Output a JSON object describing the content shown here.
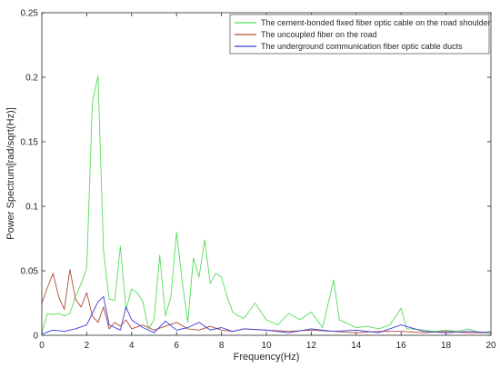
{
  "chart_data": {
    "type": "line",
    "xlabel": "Frequency(Hz)",
    "ylabel": "Power Spectrum[rad/sqrt(Hz)]",
    "xlim": [
      0,
      20
    ],
    "ylim": [
      0,
      0.25
    ],
    "xticks": [
      "0",
      "2",
      "4",
      "6",
      "8",
      "10",
      "12",
      "14",
      "16",
      "18",
      "20"
    ],
    "yticks": [
      "0",
      "0.05",
      "0.1",
      "0.15",
      "0.2",
      "0.25"
    ],
    "grid": false,
    "legend_position": "top-right",
    "series": [
      {
        "name": "The cement-bonded fixed fiber optic cable on the road shoulder",
        "color": "#55dd55",
        "x": [
          0,
          0.25,
          0.5,
          0.75,
          1.0,
          1.25,
          1.5,
          1.75,
          2.0,
          2.25,
          2.5,
          2.75,
          3.0,
          3.25,
          3.5,
          3.75,
          4.0,
          4.25,
          4.5,
          4.75,
          5.0,
          5.25,
          5.5,
          5.75,
          6.0,
          6.25,
          6.5,
          6.75,
          7.0,
          7.25,
          7.5,
          7.75,
          8.0,
          8.25,
          8.5,
          8.75,
          9.0,
          9.5,
          10.0,
          10.5,
          11.0,
          11.5,
          12.0,
          12.5,
          13.0,
          13.25,
          13.5,
          14.0,
          14.5,
          15.0,
          15.5,
          16.0,
          16.25,
          16.5,
          17.0,
          17.5,
          18.0,
          18.5,
          19.0,
          19.5,
          20.0
        ],
        "y": [
          0.002,
          0.017,
          0.016,
          0.017,
          0.015,
          0.017,
          0.03,
          0.04,
          0.052,
          0.18,
          0.201,
          0.065,
          0.028,
          0.027,
          0.069,
          0.02,
          0.036,
          0.033,
          0.026,
          0.005,
          0.012,
          0.062,
          0.015,
          0.03,
          0.08,
          0.042,
          0.01,
          0.06,
          0.045,
          0.074,
          0.04,
          0.048,
          0.045,
          0.03,
          0.018,
          0.015,
          0.013,
          0.025,
          0.012,
          0.008,
          0.017,
          0.012,
          0.018,
          0.006,
          0.043,
          0.012,
          0.01,
          0.006,
          0.007,
          0.005,
          0.008,
          0.021,
          0.005,
          0.005,
          0.004,
          0.003,
          0.004,
          0.003,
          0.005,
          0.002,
          0.003
        ]
      },
      {
        "name": "The uncoupled fiber on the road",
        "color": "#b24a33",
        "x": [
          0,
          0.25,
          0.5,
          0.75,
          1.0,
          1.25,
          1.5,
          1.75,
          2.0,
          2.25,
          2.5,
          2.75,
          3.0,
          3.25,
          3.5,
          3.75,
          4.0,
          4.5,
          5.0,
          5.5,
          6.0,
          6.5,
          7.0,
          7.5,
          8.0,
          8.5,
          9.0,
          10.0,
          11.0,
          12.0,
          13.0,
          14.0,
          15.0,
          16.0,
          17.0,
          18.0,
          19.0,
          20.0
        ],
        "y": [
          0.025,
          0.037,
          0.048,
          0.03,
          0.02,
          0.051,
          0.028,
          0.022,
          0.033,
          0.015,
          0.01,
          0.022,
          0.005,
          0.01,
          0.007,
          0.012,
          0.005,
          0.008,
          0.004,
          0.007,
          0.01,
          0.005,
          0.004,
          0.007,
          0.004,
          0.003,
          0.005,
          0.004,
          0.003,
          0.004,
          0.003,
          0.002,
          0.003,
          0.003,
          0.002,
          0.003,
          0.002,
          0.002
        ]
      },
      {
        "name": "The underground communication fiber optic cable ducts",
        "color": "#3b3bdd",
        "x": [
          0,
          0.5,
          1.0,
          1.5,
          2.0,
          2.5,
          2.75,
          3.0,
          3.5,
          3.75,
          4.0,
          4.5,
          5.0,
          5.5,
          6.0,
          6.5,
          7.0,
          7.5,
          8.0,
          8.5,
          9.0,
          10.0,
          11.0,
          12.0,
          13.0,
          14.0,
          15.0,
          16.0,
          17.0,
          18.0,
          19.0,
          20.0
        ],
        "y": [
          0.001,
          0.004,
          0.003,
          0.005,
          0.008,
          0.026,
          0.03,
          0.008,
          0.004,
          0.022,
          0.012,
          0.006,
          0.002,
          0.011,
          0.004,
          0.006,
          0.01,
          0.004,
          0.006,
          0.003,
          0.005,
          0.004,
          0.002,
          0.005,
          0.003,
          0.004,
          0.002,
          0.008,
          0.003,
          0.002,
          0.003,
          0.002
        ]
      }
    ]
  }
}
